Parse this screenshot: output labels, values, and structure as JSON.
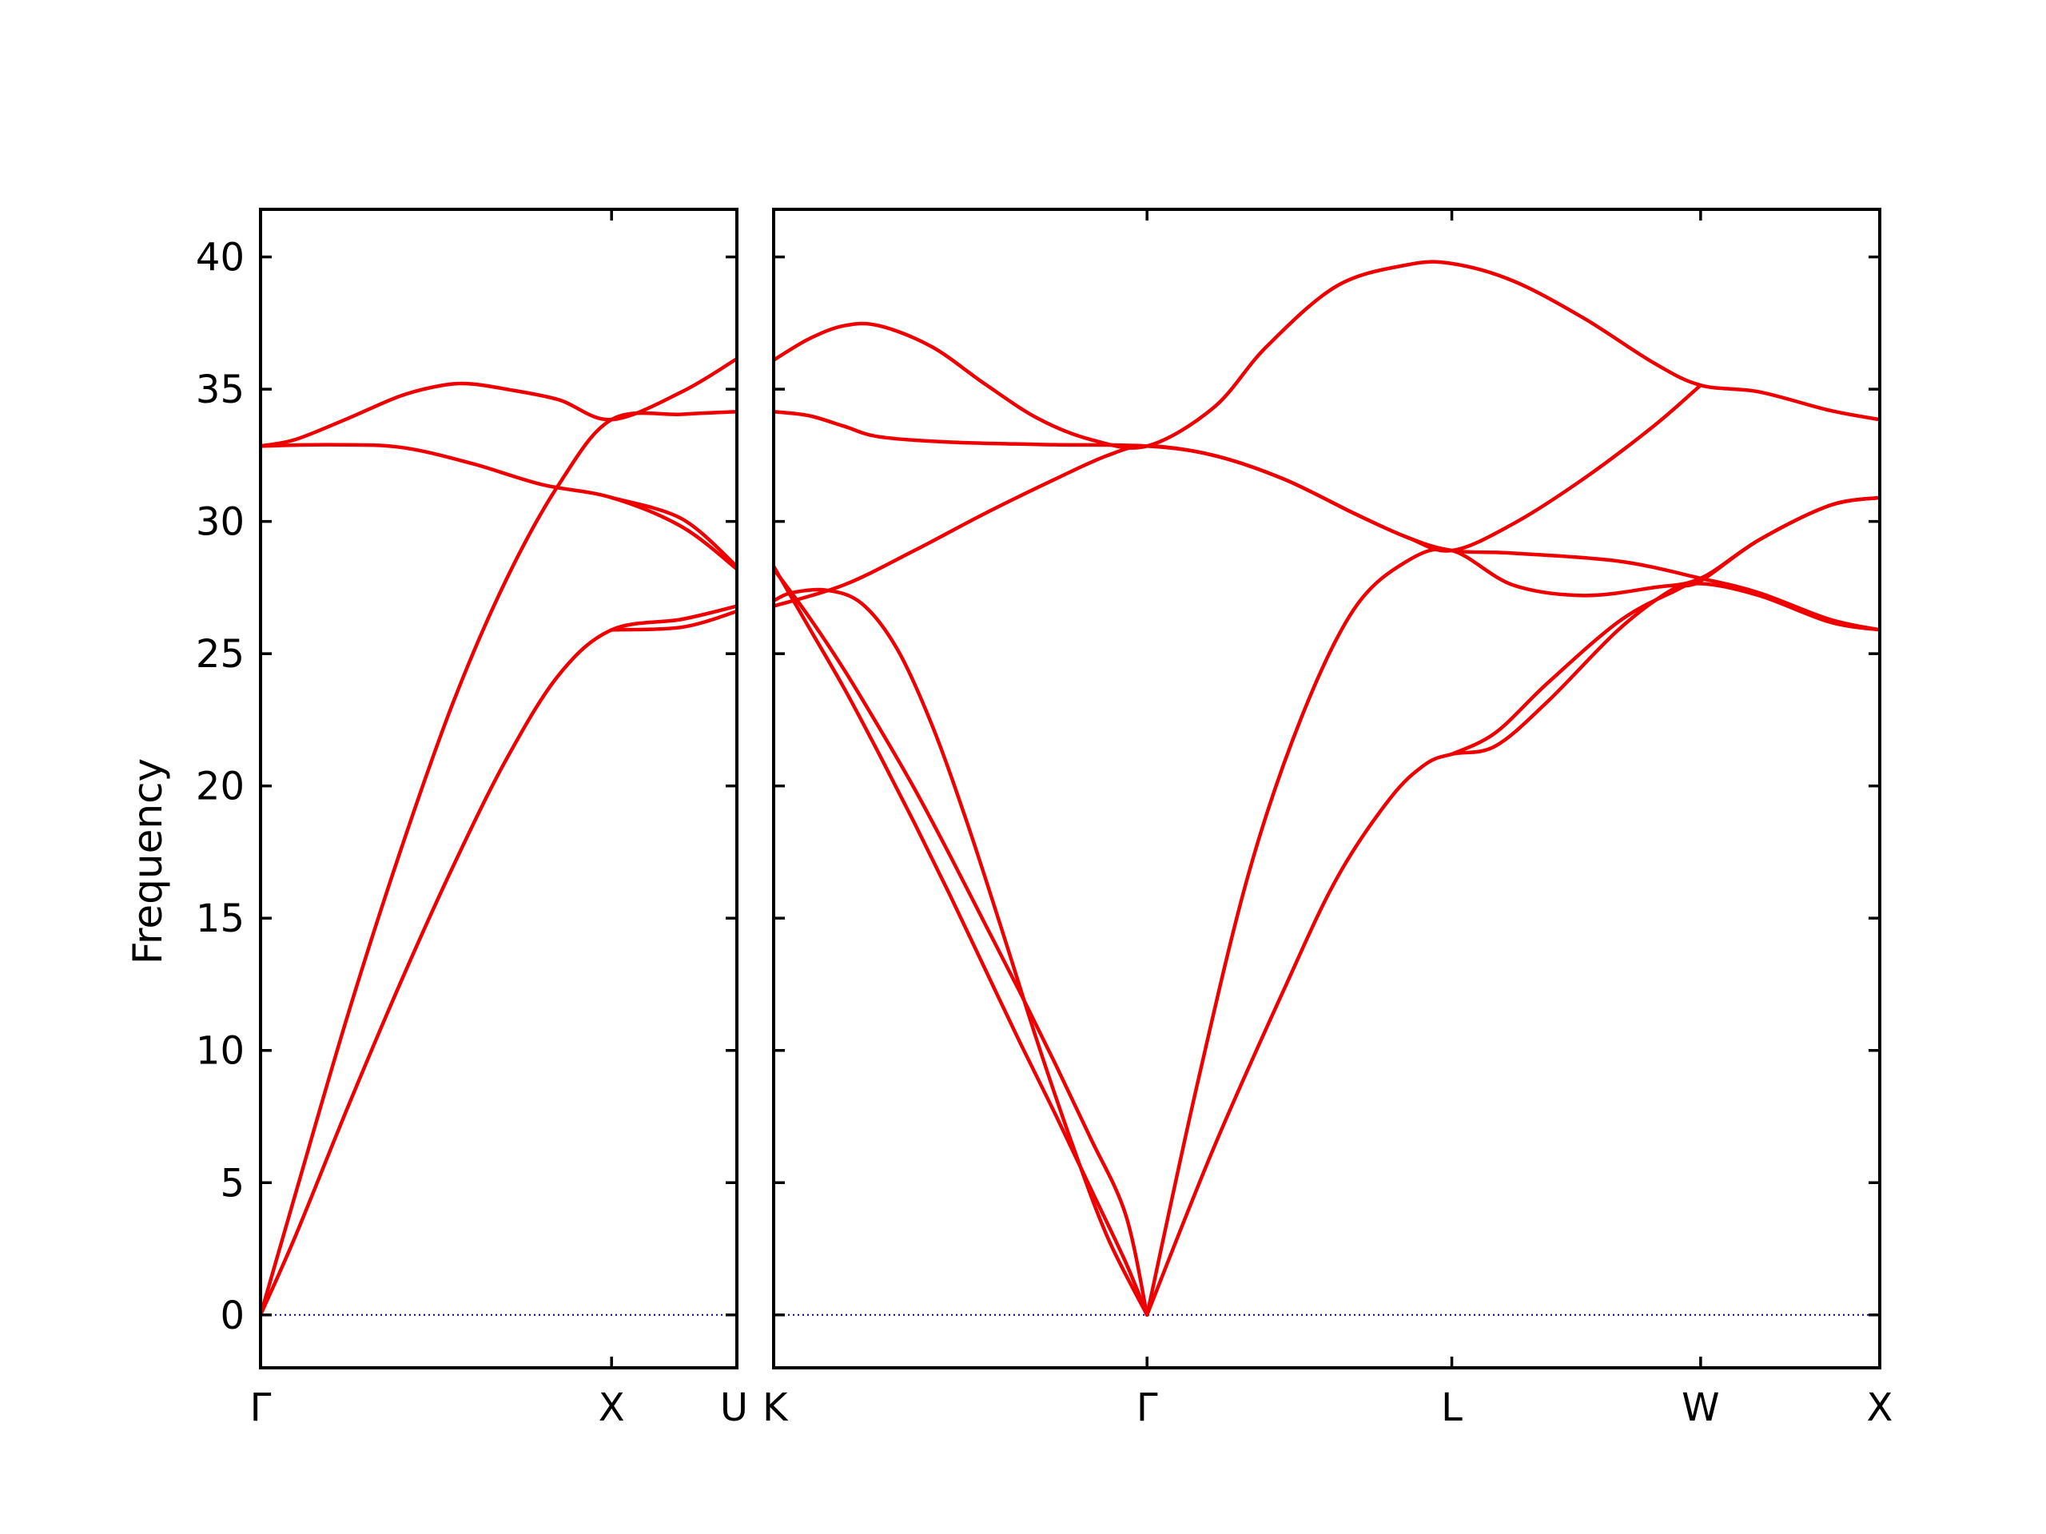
{
  "chart_data": {
    "type": "line",
    "ylabel": "Frequency",
    "ylim": [
      -2,
      41.8
    ],
    "yticks": [
      0,
      5,
      10,
      15,
      20,
      25,
      30,
      35,
      40
    ],
    "line_color": "#ee0000",
    "zero_line_color": "#0000aa",
    "panels": [
      {
        "x_range": [
          0,
          1.357
        ],
        "x_ticks": [
          {
            "value": 0,
            "label": "Γ",
            "align": "middle"
          },
          {
            "value": 1.0,
            "label": "X",
            "align": "middle"
          },
          {
            "value": 1.357,
            "label": "U",
            "align": "end"
          }
        ],
        "series": [
          {
            "values": [
              [
                0,
                0
              ],
              [
                0.1,
                4.6
              ],
              [
                0.25,
                11.4
              ],
              [
                0.4,
                17.6
              ],
              [
                0.55,
                23.2
              ],
              [
                0.7,
                27.8
              ],
              [
                0.85,
                31.4
              ],
              [
                1.0,
                33.85
              ],
              [
                1.2,
                34.05
              ],
              [
                1.357,
                34.15
              ]
            ]
          },
          {
            "values": [
              [
                0,
                0
              ],
              [
                0.1,
                3.0
              ],
              [
                0.25,
                7.9
              ],
              [
                0.4,
                12.6
              ],
              [
                0.55,
                17.0
              ],
              [
                0.7,
                21.0
              ],
              [
                0.85,
                24.2
              ],
              [
                1.0,
                25.9
              ],
              [
                1.2,
                26.3
              ],
              [
                1.357,
                26.8
              ]
            ]
          },
          {
            "values": [
              [
                0,
                32.85
              ],
              [
                0.1,
                33.1
              ],
              [
                0.25,
                33.9
              ],
              [
                0.4,
                34.75
              ],
              [
                0.52,
                35.15
              ],
              [
                0.6,
                35.2
              ],
              [
                0.7,
                35.0
              ],
              [
                0.85,
                34.6
              ],
              [
                1.0,
                33.85
              ],
              [
                1.2,
                34.9
              ],
              [
                1.357,
                36.15
              ]
            ]
          },
          {
            "values": [
              [
                0,
                32.85
              ],
              [
                0.2,
                32.9
              ],
              [
                0.4,
                32.8
              ],
              [
                0.6,
                32.2
              ],
              [
                0.8,
                31.4
              ],
              [
                1.0,
                30.9
              ],
              [
                1.2,
                29.8
              ],
              [
                1.357,
                28.2
              ]
            ]
          },
          {
            "values": [
              [
                1.0,
                30.9
              ],
              [
                1.2,
                30.1
              ],
              [
                1.357,
                28.3
              ]
            ]
          },
          {
            "values": [
              [
                1.0,
                25.9
              ],
              [
                1.2,
                26.0
              ],
              [
                1.357,
                26.6
              ]
            ]
          }
        ]
      },
      {
        "x_range": [
          0,
          3.143
        ],
        "x_ticks": [
          {
            "value": 0,
            "label": "K",
            "align": "start"
          },
          {
            "value": 1.061,
            "label": "Γ",
            "align": "middle"
          },
          {
            "value": 1.927,
            "label": "L",
            "align": "middle"
          },
          {
            "value": 2.634,
            "label": "W",
            "align": "middle"
          },
          {
            "value": 3.143,
            "label": "X",
            "align": "middle"
          }
        ],
        "series": [
          {
            "values": [
              [
                0,
                36.1
              ],
              [
                0.1,
                36.9
              ],
              [
                0.2,
                37.4
              ],
              [
                0.3,
                37.4
              ],
              [
                0.45,
                36.6
              ],
              [
                0.6,
                35.2
              ],
              [
                0.75,
                33.9
              ],
              [
                0.9,
                33.1
              ],
              [
                1.061,
                32.85
              ],
              [
                1.25,
                34.3
              ],
              [
                1.4,
                36.6
              ],
              [
                1.6,
                38.9
              ],
              [
                1.8,
                39.7
              ],
              [
                1.927,
                39.75
              ],
              [
                2.1,
                39.1
              ],
              [
                2.3,
                37.7
              ],
              [
                2.5,
                36.0
              ],
              [
                2.634,
                35.15
              ],
              [
                2.8,
                34.9
              ],
              [
                3.0,
                34.2
              ],
              [
                3.143,
                33.85
              ]
            ]
          },
          {
            "values": [
              [
                0,
                34.15
              ],
              [
                0.1,
                34.0
              ],
              [
                0.2,
                33.6
              ],
              [
                0.3,
                33.2
              ],
              [
                0.5,
                33.0
              ],
              [
                0.8,
                32.9
              ],
              [
                1.061,
                32.85
              ],
              [
                1.25,
                32.5
              ],
              [
                1.45,
                31.6
              ],
              [
                1.65,
                30.3
              ],
              [
                1.8,
                29.4
              ],
              [
                1.927,
                28.9
              ],
              [
                2.1,
                28.8
              ],
              [
                2.4,
                28.5
              ],
              [
                2.634,
                27.85
              ],
              [
                2.8,
                27.3
              ],
              [
                3.0,
                26.3
              ],
              [
                3.143,
                25.9
              ]
            ]
          },
          {
            "values": [
              [
                0,
                26.8
              ],
              [
                0.2,
                27.6
              ],
              [
                0.4,
                28.9
              ],
              [
                0.6,
                30.3
              ],
              [
                0.8,
                31.6
              ],
              [
                0.95,
                32.5
              ],
              [
                1.061,
                32.85
              ],
              [
                1.25,
                32.5
              ],
              [
                1.45,
                31.6
              ],
              [
                1.65,
                30.3
              ],
              [
                1.8,
                29.4
              ],
              [
                1.927,
                28.9
              ],
              [
                2.1,
                29.9
              ],
              [
                2.3,
                31.6
              ],
              [
                2.5,
                33.6
              ],
              [
                2.634,
                35.15
              ]
            ]
          },
          {
            "values": [
              [
                0,
                27.0
              ],
              [
                0.05,
                27.3
              ],
              [
                0.15,
                27.4
              ],
              [
                0.25,
                26.9
              ],
              [
                0.35,
                25.2
              ],
              [
                0.45,
                22.3
              ],
              [
                0.55,
                18.6
              ],
              [
                0.65,
                14.5
              ],
              [
                0.75,
                10.3
              ],
              [
                0.85,
                6.4
              ],
              [
                0.95,
                2.9
              ],
              [
                1.061,
                0
              ]
            ]
          },
          {
            "values": [
              [
                0,
                28.2
              ],
              [
                0.1,
                26.4
              ],
              [
                0.2,
                24.4
              ],
              [
                0.3,
                22.2
              ],
              [
                0.4,
                19.9
              ],
              [
                0.5,
                17.4
              ],
              [
                0.6,
                14.8
              ],
              [
                0.7,
                12.2
              ],
              [
                0.8,
                9.5
              ],
              [
                0.9,
                6.7
              ],
              [
                1.0,
                3.8
              ],
              [
                1.061,
                0
              ]
            ]
          },
          {
            "values": [
              [
                0,
                28.3
              ],
              [
                0.1,
                26.0
              ],
              [
                0.2,
                23.7
              ],
              [
                0.3,
                21.2
              ],
              [
                0.4,
                18.6
              ],
              [
                0.5,
                15.9
              ],
              [
                0.6,
                13.1
              ],
              [
                0.7,
                10.3
              ],
              [
                0.8,
                7.6
              ],
              [
                0.9,
                4.8
              ],
              [
                1.0,
                2.0
              ],
              [
                1.061,
                0
              ]
            ]
          },
          {
            "values": [
              [
                1.061,
                0
              ],
              [
                1.2,
                8.5
              ],
              [
                1.35,
                16.7
              ],
              [
                1.5,
                22.6
              ],
              [
                1.65,
                26.7
              ],
              [
                1.8,
                28.5
              ],
              [
                1.927,
                28.9
              ],
              [
                2.1,
                27.6
              ],
              [
                2.3,
                27.2
              ],
              [
                2.5,
                27.5
              ],
              [
                2.634,
                27.85
              ],
              [
                2.8,
                29.3
              ],
              [
                3.0,
                30.6
              ],
              [
                3.143,
                30.9
              ]
            ]
          },
          {
            "values": [
              [
                1.061,
                0
              ],
              [
                1.25,
                6.3
              ],
              [
                1.45,
                12.3
              ],
              [
                1.6,
                16.5
              ],
              [
                1.75,
                19.5
              ],
              [
                1.85,
                20.8
              ],
              [
                1.927,
                21.2
              ],
              [
                2.05,
                21.5
              ],
              [
                2.2,
                23.2
              ],
              [
                2.4,
                25.9
              ],
              [
                2.55,
                27.4
              ],
              [
                2.634,
                27.75
              ],
              [
                2.8,
                29.3
              ],
              [
                3.0,
                30.6
              ],
              [
                3.143,
                30.9
              ]
            ]
          },
          {
            "values": [
              [
                1.927,
                21.2
              ],
              [
                2.05,
                22.0
              ],
              [
                2.2,
                23.9
              ],
              [
                2.4,
                26.2
              ],
              [
                2.55,
                27.3
              ],
              [
                2.634,
                27.65
              ],
              [
                2.8,
                27.2
              ],
              [
                3.0,
                26.2
              ],
              [
                3.143,
                25.9
              ]
            ]
          }
        ]
      }
    ]
  }
}
